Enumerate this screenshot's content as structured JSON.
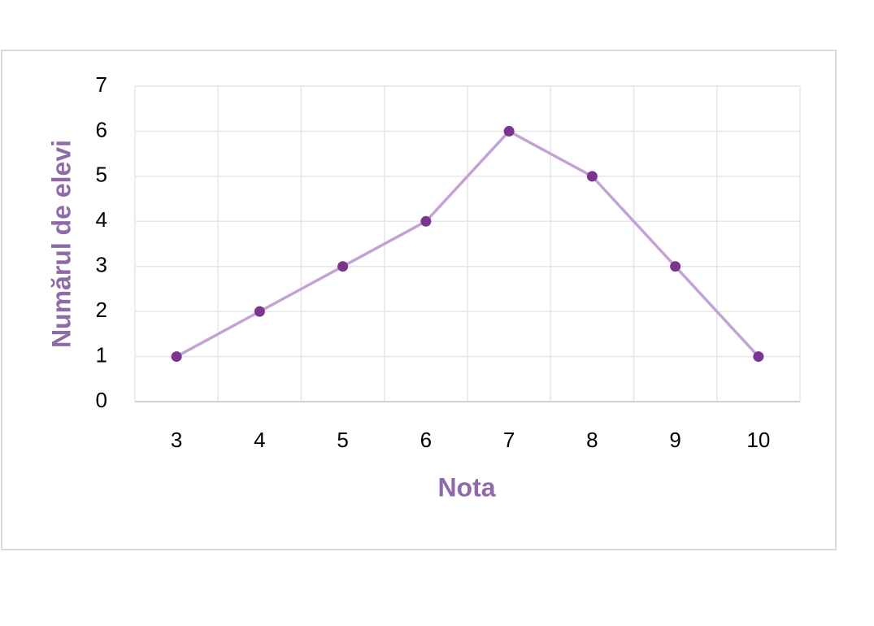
{
  "chart_data": {
    "type": "line",
    "x_label": "Nota",
    "y_label": "Numărul de elevi",
    "categories": [
      "3",
      "4",
      "5",
      "6",
      "7",
      "8",
      "9",
      "10"
    ],
    "values": [
      1,
      2,
      3,
      4,
      6,
      5,
      3,
      1
    ],
    "color": "#c3a3d5",
    "marker_color": "#7a3590",
    "ylim": [
      0,
      7
    ],
    "yticks": [
      0,
      1,
      2,
      3,
      4,
      5,
      6,
      7
    ],
    "grid": true
  }
}
